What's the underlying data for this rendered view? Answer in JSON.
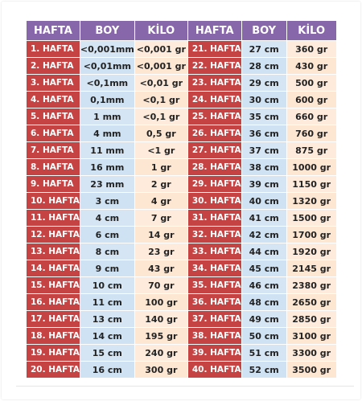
{
  "table": {
    "headers": [
      "HAFTA",
      "BOY",
      "KİLO",
      "HAFTA",
      "BOY",
      "KİLO"
    ],
    "rows": [
      [
        "1. HAFTA",
        "<0,001mm",
        "<0,001 gr",
        "21. HAFTA",
        "27 cm",
        "360 gr"
      ],
      [
        "2. HAFTA",
        "<0,01mm",
        "<0,001 gr",
        "22. HAFTA",
        "28 cm",
        "430 gr"
      ],
      [
        "3. HAFTA",
        "<0,1mm",
        "<0,01 gr",
        "23. HAFTA",
        "29 cm",
        "500 gr"
      ],
      [
        "4. HAFTA",
        "0,1mm",
        "<0,1 gr",
        "24. HAFTA",
        "30 cm",
        "600 gr"
      ],
      [
        "5. HAFTA",
        "1 mm",
        "<0,1 gr",
        "25. HAFTA",
        "35 cm",
        "660 gr"
      ],
      [
        "6. HAFTA",
        "4 mm",
        "0,5 gr",
        "26. HAFTA",
        "36 cm",
        "760 gr"
      ],
      [
        "7. HAFTA",
        "11 mm",
        "<1 gr",
        "27. HAFTA",
        "37 cm",
        "875 gr"
      ],
      [
        "8. HAFTA",
        "16 mm",
        "1 gr",
        "28. HAFTA",
        "38 cm",
        "1000 gr"
      ],
      [
        "9. HAFTA",
        "23 mm",
        "2 gr",
        "29. HAFTA",
        "39 cm",
        "1150 gr"
      ],
      [
        "10. HAFTA",
        "3 cm",
        "4 gr",
        "30. HAFTA",
        "40 cm",
        "1320 gr"
      ],
      [
        "11. HAFTA",
        "4 cm",
        "7 gr",
        "31. HAFTA",
        "41 cm",
        "1500 gr"
      ],
      [
        "12. HAFTA",
        "6 cm",
        "14 gr",
        "32. HAFTA",
        "42 cm",
        "1700 gr"
      ],
      [
        "13. HAFTA",
        "8 cm",
        "23 gr",
        "33. HAFTA",
        "44 cm",
        "1920 gr"
      ],
      [
        "14. HAFTA",
        "9 cm",
        "43 gr",
        "34. HAFTA",
        "45 cm",
        "2145 gr"
      ],
      [
        "15. HAFTA",
        "10 cm",
        "70 gr",
        "35. HAFTA",
        "46 cm",
        "2380 gr"
      ],
      [
        "16. HAFTA",
        "11 cm",
        "100 gr",
        "36. HAFTA",
        "48 cm",
        "2650 gr"
      ],
      [
        "17. HAFTA",
        "13 cm",
        "140 gr",
        "37. HAFTA",
        "49 cm",
        "2850 gr"
      ],
      [
        "18. HAFTA",
        "14 cm",
        "195 gr",
        "38. HAFTA",
        "50 cm",
        "3100 gr"
      ],
      [
        "19. HAFTA",
        "15 cm",
        "240 gr",
        "39. HAFTA",
        "51 cm",
        "3300 gr"
      ],
      [
        "20. HAFTA",
        "16 cm",
        "300 gr",
        "40. HAFTA",
        "52 cm",
        "3500 gr"
      ]
    ]
  },
  "colors": {
    "header": "#8866aa",
    "week": "#c64343",
    "boy": "#cfe2f3",
    "kilo": "#fde6d2"
  }
}
